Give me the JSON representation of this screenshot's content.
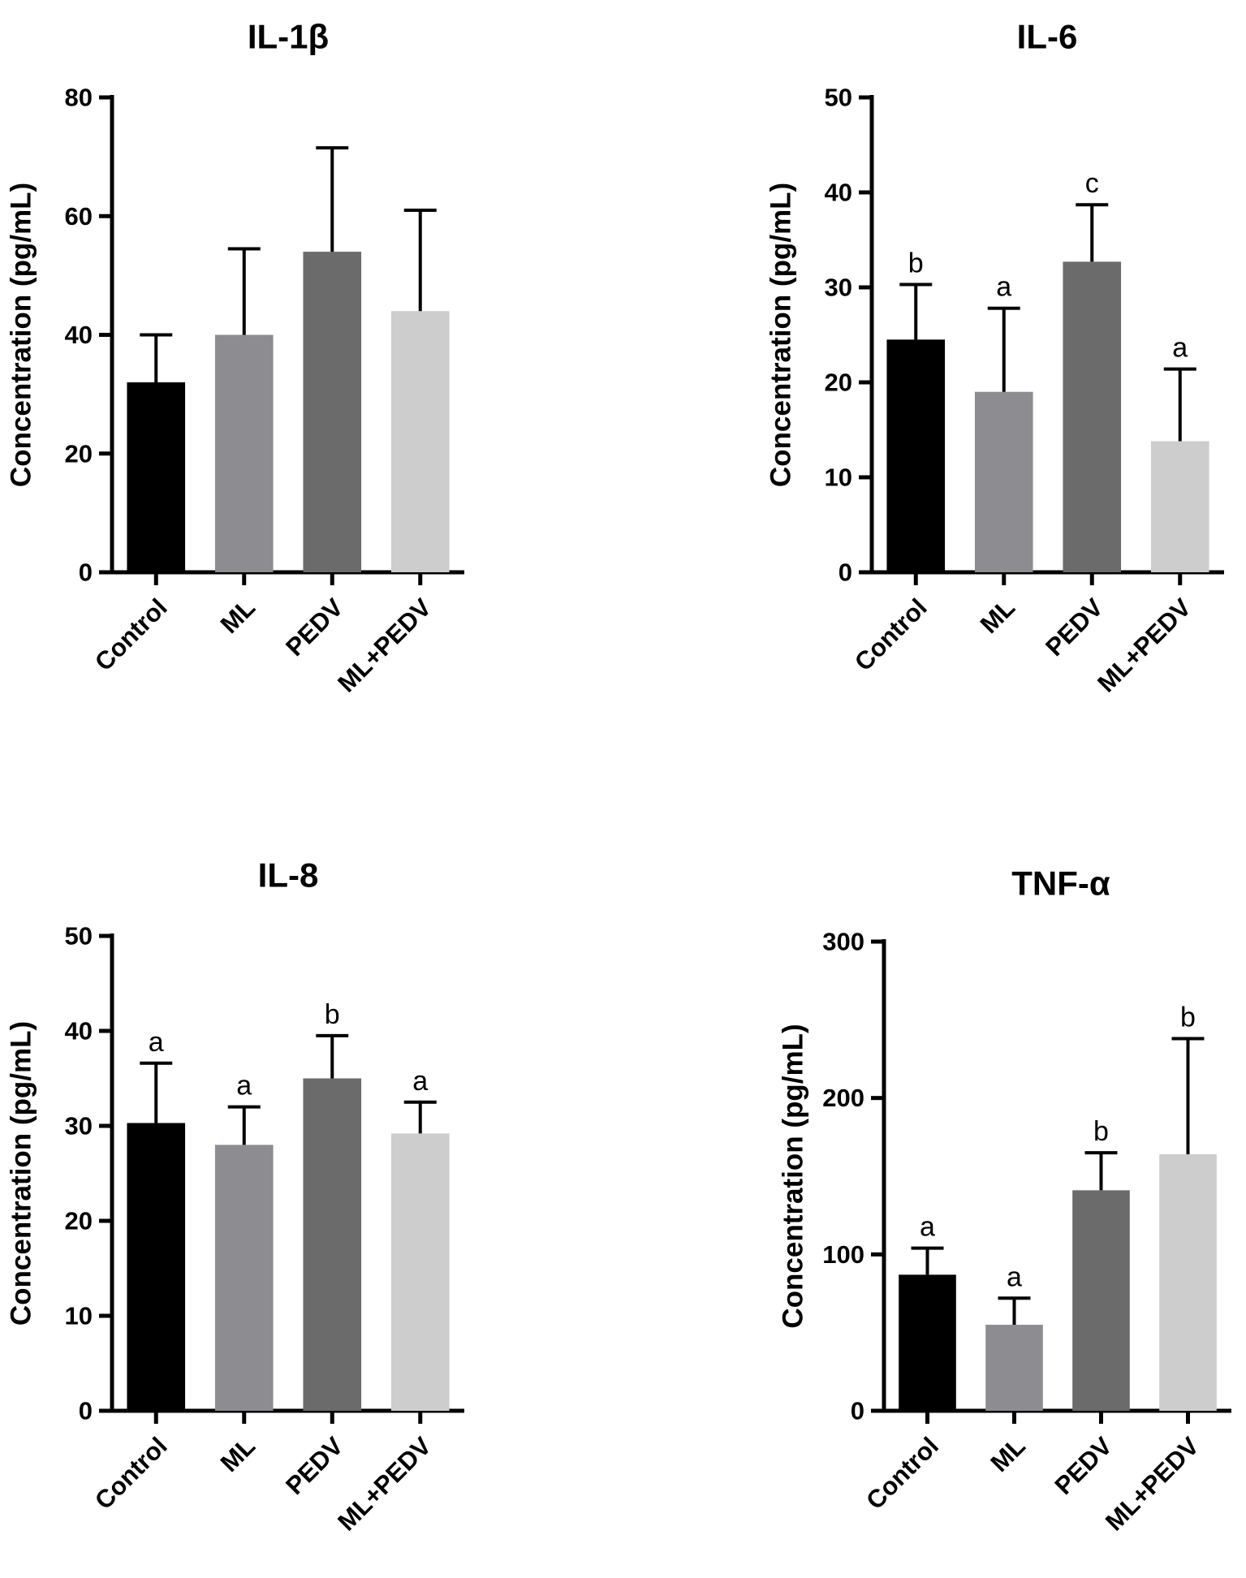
{
  "colors": [
    "#000000",
    "#8c8c91",
    "#6b6b6b",
    "#cdcdcd"
  ],
  "chart_data": [
    {
      "type": "bar",
      "title": "IL-1β",
      "ylabel": "Concentration (pg/mL)",
      "categories": [
        "Control",
        "ML",
        "PEDV",
        "ML+PEDV"
      ],
      "values": [
        32,
        40,
        54,
        44
      ],
      "errors": [
        8,
        14.5,
        17.5,
        17
      ],
      "significance": [
        "",
        "",
        "",
        ""
      ],
      "ylim": [
        0,
        80
      ],
      "yticks": [
        "0",
        "20",
        "40",
        "60",
        "80"
      ]
    },
    {
      "type": "bar",
      "title": "IL-6",
      "ylabel": "Concentration (pg/mL)",
      "categories": [
        "Control",
        "ML",
        "PEDV",
        "ML+PEDV"
      ],
      "values": [
        24.5,
        19,
        32.7,
        13.8
      ],
      "errors": [
        5.8,
        8.8,
        6,
        7.6
      ],
      "significance": [
        "b",
        "a",
        "c",
        "a"
      ],
      "ylim": [
        0,
        50
      ],
      "yticks": [
        "0",
        "10",
        "20",
        "30",
        "40",
        "50"
      ]
    },
    {
      "type": "bar",
      "title": "IL-8",
      "ylabel": "Concentration (pg/mL)",
      "categories": [
        "Control",
        "ML",
        "PEDV",
        "ML+PEDV"
      ],
      "values": [
        30.3,
        28,
        35,
        29.2
      ],
      "errors": [
        6.3,
        4,
        4.5,
        3.3
      ],
      "significance": [
        "a",
        "a",
        "b",
        "a"
      ],
      "ylim": [
        0,
        50
      ],
      "yticks": [
        "0",
        "10",
        "20",
        "30",
        "40",
        "50"
      ]
    },
    {
      "type": "bar",
      "title": "TNF-α",
      "ylabel": "Concentration (pg/mL)",
      "categories": [
        "Control",
        "ML",
        "PEDV",
        "ML+PEDV"
      ],
      "values": [
        87,
        55,
        141,
        164
      ],
      "errors": [
        17,
        17,
        24,
        74
      ],
      "significance": [
        "a",
        "a",
        "b",
        "b"
      ],
      "ylim": [
        0,
        300
      ],
      "yticks": [
        "0",
        "100",
        "200",
        "300"
      ]
    }
  ]
}
